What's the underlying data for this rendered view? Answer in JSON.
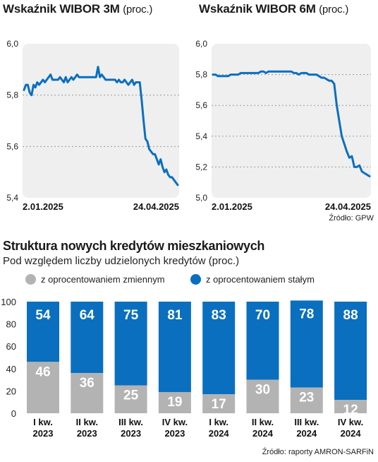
{
  "charts": {
    "wibor3m": {
      "title": "Wskaźnik WIBOR 3M",
      "unit": "(proc.)"
    },
    "wibor6m": {
      "title": "Wskaźnik WIBOR 6M",
      "unit": "(proc.)"
    },
    "top_source": "Źródło: GPW",
    "bar_section": {
      "title": "Struktura nowych kredytów mieszkaniowych",
      "subtitle": "Pod względem liczby udzielonych kredytów (proc.)",
      "legend": {
        "variable": "z oprocentowaniem zmiennym",
        "fixed": "z oprocentowaniem stałym"
      },
      "source": "Źródło: raporty AMRON-SARFiN"
    }
  },
  "colors": {
    "blue": "#0a6fbf",
    "gray": "#b3b3b3",
    "panel": "#efefef"
  },
  "chart_data": [
    {
      "type": "line",
      "title": "Wskaźnik WIBOR 3M (proc.)",
      "ylim": [
        5.4,
        6.0
      ],
      "yticks": [
        "6,0",
        "5,8",
        "5,6",
        "5,4"
      ],
      "xticks": [
        "2.01.2025",
        "24.04.2025"
      ],
      "grid": true,
      "series": [
        {
          "values": [
            5.82,
            5.84,
            5.84,
            5.81,
            5.8,
            5.84,
            5.83,
            5.85,
            5.84,
            5.85,
            5.86,
            5.85,
            5.86,
            5.87,
            5.88,
            5.86,
            5.86,
            5.86,
            5.86,
            5.87,
            5.86,
            5.85,
            5.87,
            5.85,
            5.86,
            5.87,
            5.86,
            5.87,
            5.88,
            5.87,
            5.87,
            5.87,
            5.87,
            5.87,
            5.87,
            5.87,
            5.87,
            5.87,
            5.87,
            5.91,
            5.87,
            5.88,
            5.87,
            5.86,
            5.86,
            5.86,
            5.86,
            5.86,
            5.86,
            5.85,
            5.86,
            5.85,
            5.85,
            5.86,
            5.85,
            5.84,
            5.85,
            5.86,
            5.84,
            5.85,
            5.85,
            5.85,
            5.78,
            5.7,
            5.63,
            5.62,
            5.59,
            5.58,
            5.57,
            5.57,
            5.55,
            5.53,
            5.55,
            5.52,
            5.5,
            5.51,
            5.49,
            5.48,
            5.48,
            5.47,
            5.46,
            5.45
          ]
        }
      ]
    },
    {
      "type": "line",
      "title": "Wskaźnik WIBOR 6M (proc.)",
      "ylim": [
        5.0,
        6.0
      ],
      "yticks": [
        "6,0",
        "5,8",
        "5,6",
        "5,4",
        "5,2",
        "5,0"
      ],
      "xticks": [
        "2.01.2025",
        "24.04.2025"
      ],
      "grid": true,
      "series": [
        {
          "values": [
            5.8,
            5.8,
            5.79,
            5.79,
            5.79,
            5.79,
            5.79,
            5.8,
            5.8,
            5.8,
            5.8,
            5.81,
            5.81,
            5.81,
            5.81,
            5.81,
            5.81,
            5.81,
            5.81,
            5.82,
            5.82,
            5.81,
            5.82,
            5.82,
            5.82,
            5.82,
            5.82,
            5.82,
            5.82,
            5.82,
            5.82,
            5.82,
            5.81,
            5.81,
            5.8,
            5.81,
            5.81,
            5.81,
            5.8,
            5.8,
            5.8,
            5.8,
            5.79,
            5.78,
            5.78,
            5.77,
            5.76,
            5.76,
            5.74,
            5.6,
            5.5,
            5.4,
            5.35,
            5.3,
            5.26,
            5.27,
            5.2,
            5.2,
            5.21,
            5.17,
            5.16,
            5.15,
            5.14
          ]
        }
      ]
    },
    {
      "type": "bar",
      "title": "Struktura nowych kredytów mieszkaniowych",
      "subtitle": "Pod względem liczby udzielonych kredytów (proc.)",
      "stacked": true,
      "categories": [
        [
          "I kw.",
          "2023"
        ],
        [
          "II kw.",
          "2023"
        ],
        [
          "III kw.",
          "2023"
        ],
        [
          "IV kw.",
          "2023"
        ],
        [
          "I kw.",
          "2024"
        ],
        [
          "II kw.",
          "2024"
        ],
        [
          "III kw.",
          "2024"
        ],
        [
          "IV kw.",
          "2024"
        ]
      ],
      "ylim": [
        0,
        100
      ],
      "yticks": [
        "100",
        "80",
        "60",
        "40",
        "20",
        "0"
      ],
      "series": [
        {
          "name": "z oprocentowaniem zmiennym",
          "values": [
            46,
            36,
            25,
            19,
            17,
            30,
            23,
            12
          ]
        },
        {
          "name": "z oprocentowaniem stałym",
          "values": [
            54,
            64,
            75,
            81,
            83,
            70,
            78,
            88
          ]
        }
      ]
    }
  ]
}
